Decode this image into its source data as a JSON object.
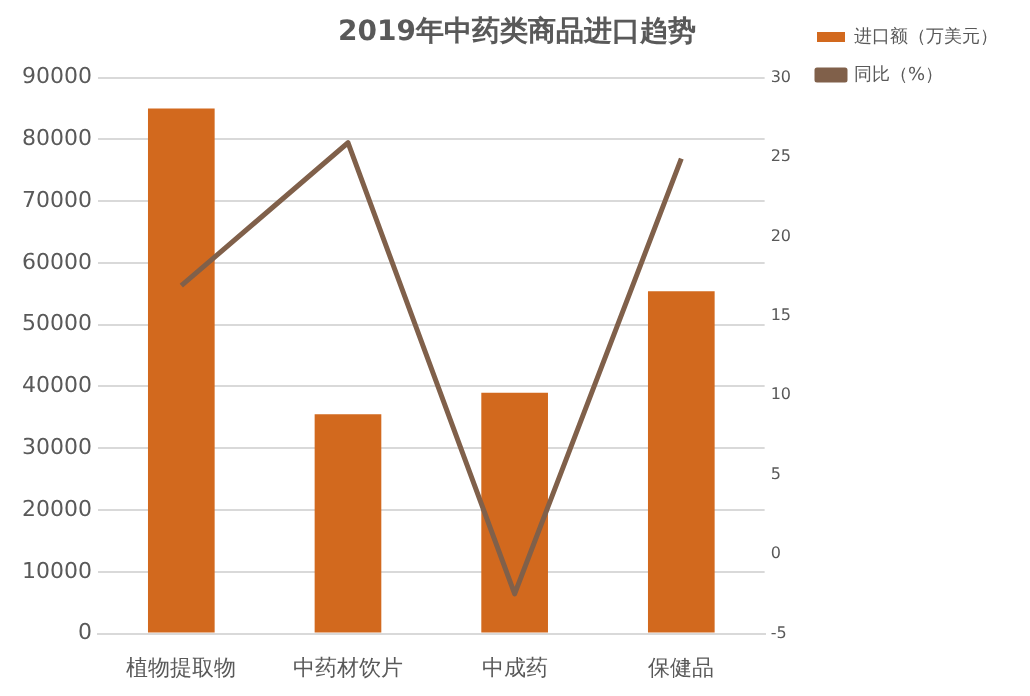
{
  "chart_data": {
    "type": "bar",
    "title": "2019年中药类商品进口趋势",
    "categories": [
      "植物提取物",
      "中药材饮片",
      "中成药",
      "保健品"
    ],
    "series": [
      {
        "name": "进口额（万美元）",
        "color": "#d2691e",
        "values": [
          85000,
          35500,
          39000,
          55400
        ]
      },
      {
        "name": "同比（%）",
        "type": "line",
        "axis": "y2",
        "color": "#80604a",
        "values": [
          16.9,
          25.9,
          -2.5,
          24.9
        ]
      }
    ],
    "ylim": [
      0,
      90000
    ],
    "yticks": [
      0,
      10000,
      20000,
      30000,
      40000,
      50000,
      60000,
      70000,
      80000,
      90000
    ],
    "y2lim": [
      -5,
      30
    ],
    "y2ticks": [
      -5,
      0,
      5,
      10,
      15,
      20,
      25,
      30
    ],
    "grid": "y",
    "legend": "right",
    "marker": "none"
  }
}
